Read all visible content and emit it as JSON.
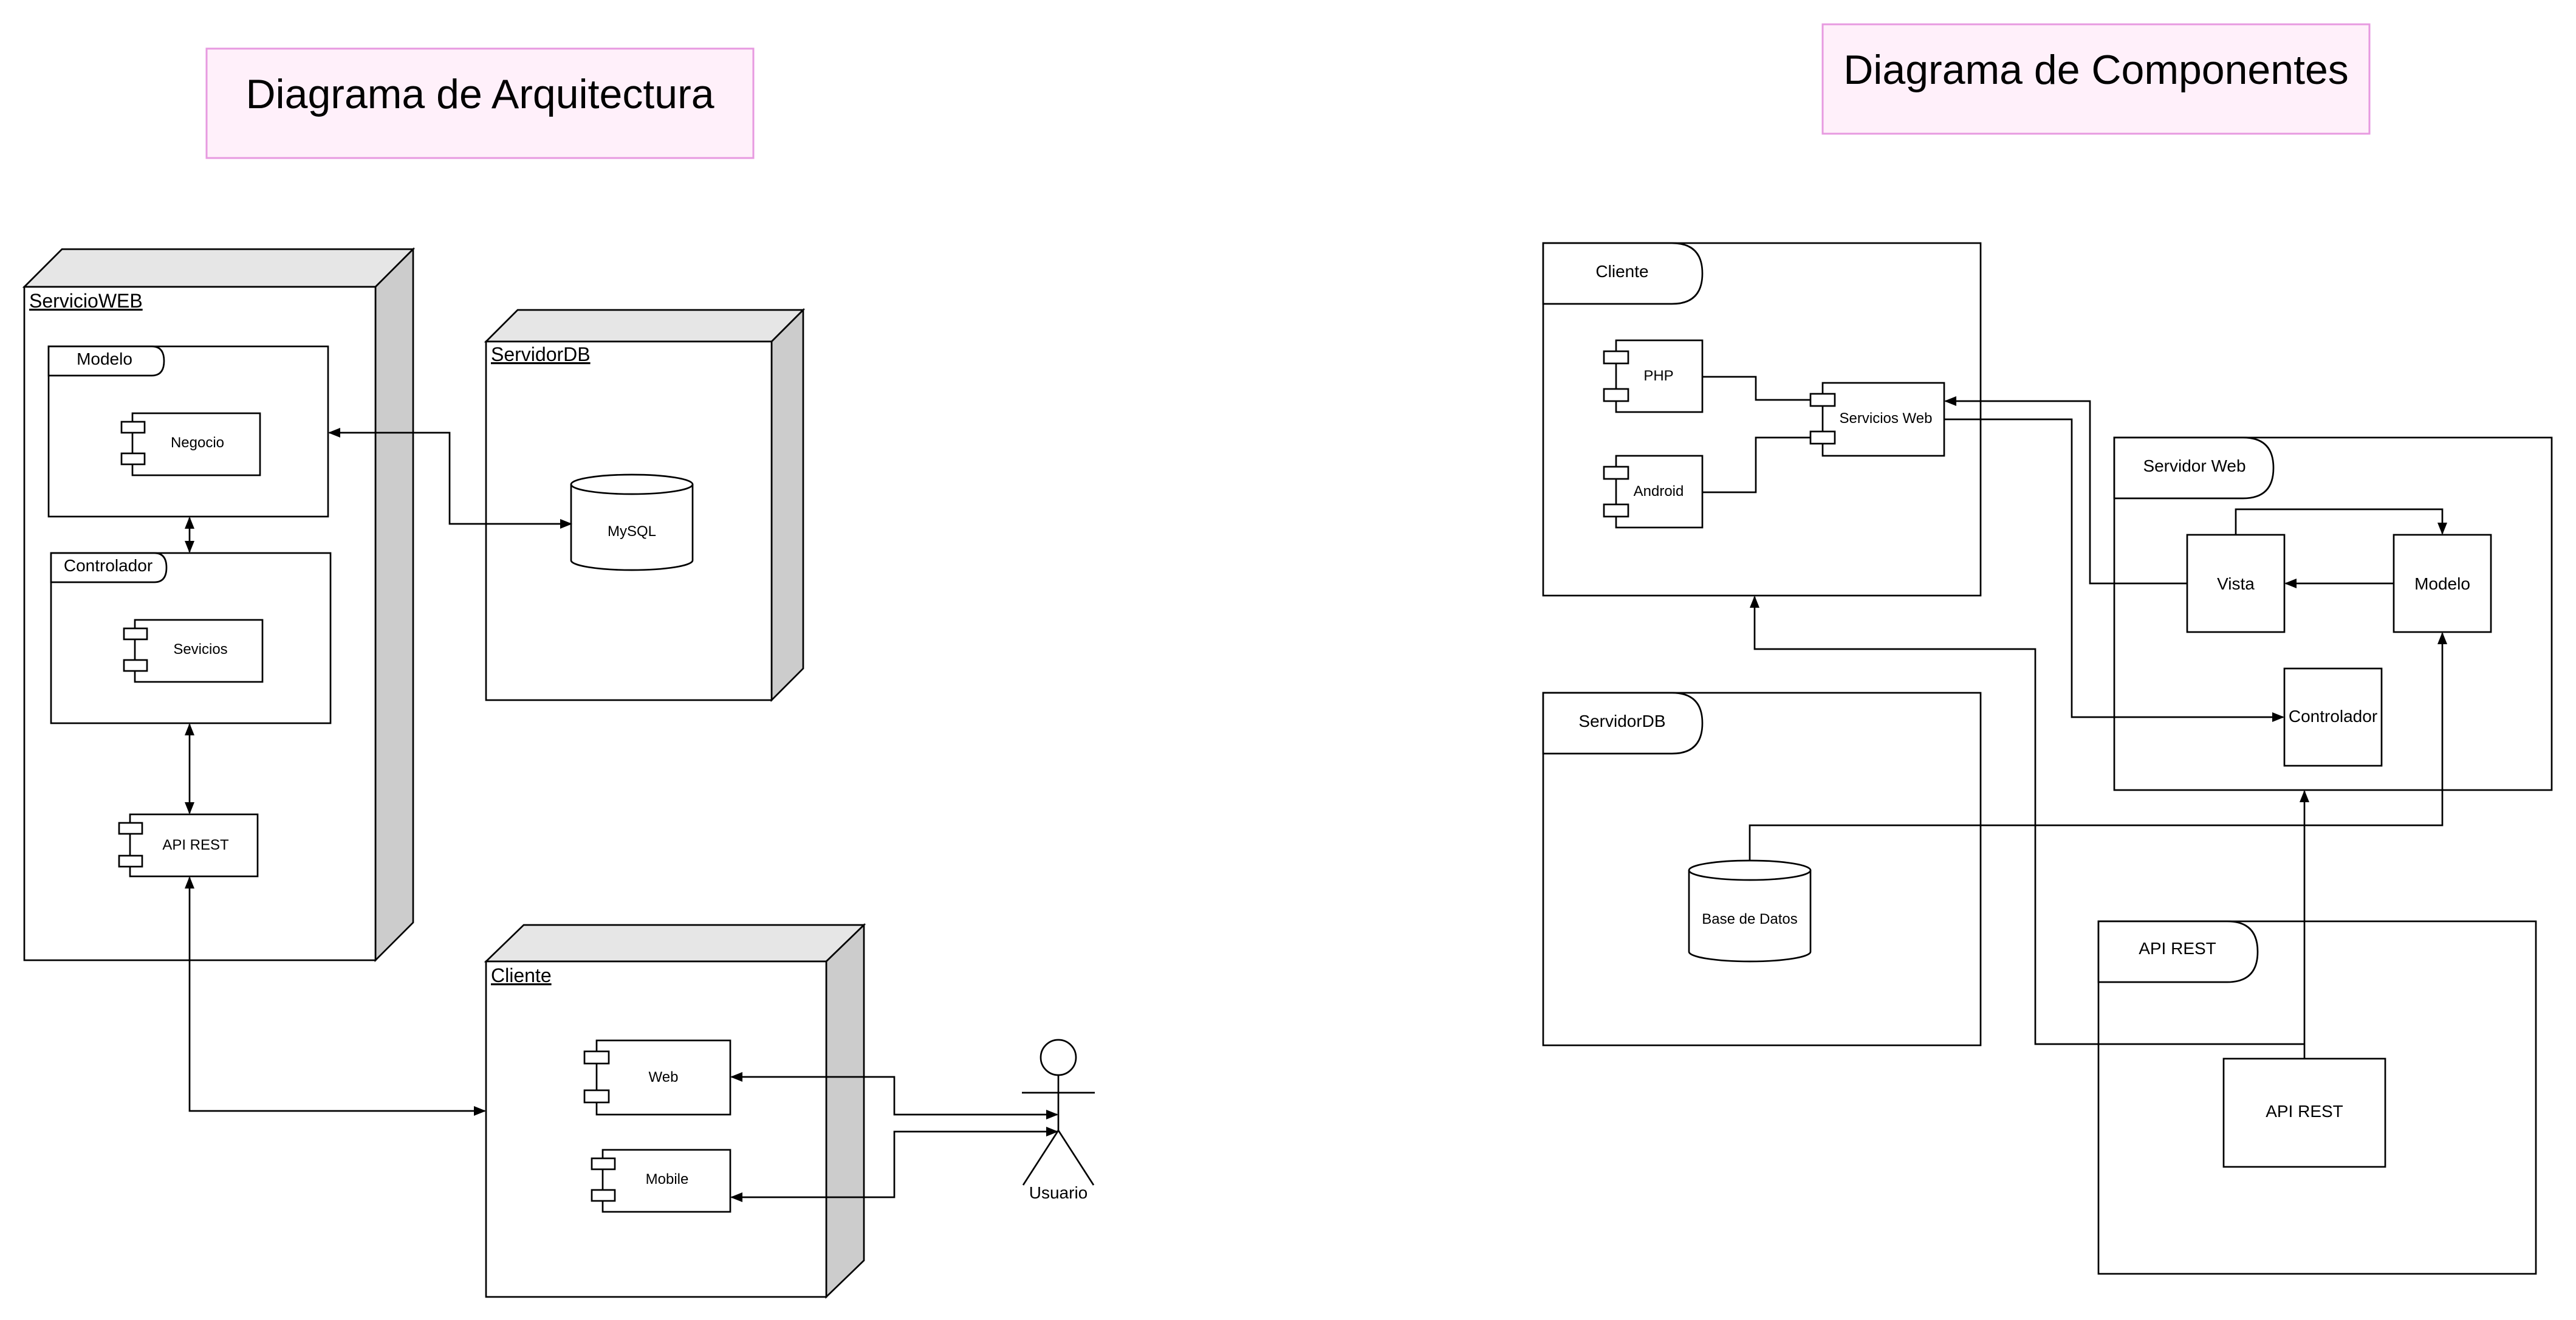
{
  "titles": {
    "architecture": "Diagrama de Arquitectura",
    "components": "Diagrama de Componentes"
  },
  "architecture": {
    "servicio_web": {
      "label": "ServicioWEB",
      "modelo": {
        "label": "Modelo",
        "component": "Negocio"
      },
      "controlador": {
        "label": "Controlador",
        "component": "Sevicios"
      },
      "api": "API REST"
    },
    "servidor_db": {
      "label": "ServidorDB",
      "database": "MySQL"
    },
    "cliente": {
      "label": "Cliente",
      "web": "Web",
      "mobile": "Mobile"
    },
    "actor": "Usuario"
  },
  "components": {
    "cliente": {
      "label": "Cliente",
      "php": "PHP",
      "android": "Android",
      "servicios_web": "Servicios Web"
    },
    "servidor_web": {
      "label": "Servidor Web",
      "vista": "Vista",
      "modelo": "Modelo",
      "controlador": "Controlador"
    },
    "servidor_db": {
      "label": "ServidorDB",
      "database": "Base de Datos"
    },
    "api_rest": {
      "label": "API REST",
      "component": "API REST"
    }
  }
}
